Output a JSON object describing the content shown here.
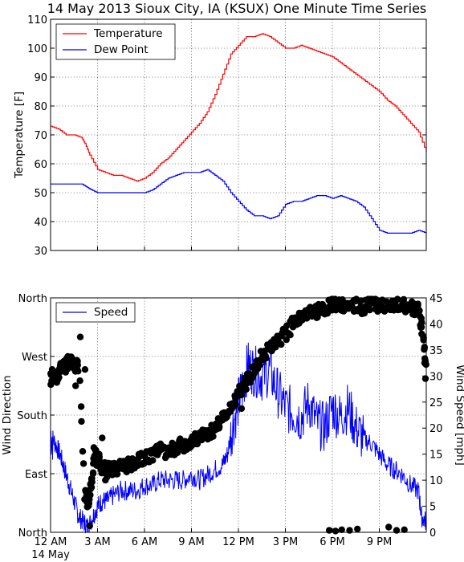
{
  "title": "14 May 2013 Sioux City, IA (KSUX) One Minute Time Series",
  "chart_data": [
    {
      "type": "line",
      "ylabel": "Temperature [F]",
      "ylim": [
        30,
        110
      ],
      "yticks": [
        30,
        40,
        50,
        60,
        70,
        80,
        90,
        100,
        110
      ],
      "xlim_hours": [
        0,
        24
      ],
      "grid": true,
      "legend_position": "top-left",
      "series": [
        {
          "name": "Temperature",
          "color": "#ff0000",
          "x_hours": [
            0,
            0.5,
            1,
            1.5,
            2,
            2.2,
            2.5,
            3,
            3.5,
            4,
            4.5,
            5,
            5.5,
            6,
            6.5,
            7,
            7.5,
            8,
            8.5,
            9,
            9.5,
            10,
            10.5,
            11,
            11.5,
            12,
            12.5,
            13,
            13.5,
            14,
            14.5,
            15,
            15.5,
            16,
            16.5,
            17,
            17.5,
            18,
            18.5,
            19,
            19.5,
            20,
            20.5,
            21,
            21.5,
            22,
            22.5,
            23,
            23.5,
            24
          ],
          "y": [
            73,
            72,
            70,
            70,
            69,
            67,
            63,
            58,
            57,
            56,
            56,
            55,
            54,
            55,
            57,
            60,
            62,
            65,
            68,
            71,
            74,
            78,
            84,
            91,
            98,
            101,
            104,
            104,
            105,
            104,
            102,
            100,
            100,
            101,
            100,
            99,
            98,
            97,
            95,
            93,
            91,
            89,
            87,
            85,
            82,
            80,
            77,
            74,
            71,
            64
          ]
        },
        {
          "name": "Dew Point",
          "color": "#0000ff",
          "x_hours": [
            0,
            1,
            2,
            2.3,
            2.6,
            3,
            4,
            5,
            6,
            6.5,
            7,
            7.5,
            8,
            8.5,
            9,
            9.5,
            10,
            10.5,
            11,
            11.5,
            12,
            12.5,
            13,
            13.5,
            14,
            14.5,
            15,
            15.5,
            16,
            16.5,
            17,
            17.5,
            18,
            18.5,
            19,
            19.5,
            20,
            20.5,
            21,
            21.5,
            22,
            22.5,
            23,
            23.5,
            24
          ],
          "y": [
            53,
            53,
            53,
            52,
            51,
            50,
            50,
            50,
            50,
            51,
            53,
            55,
            56,
            57,
            57,
            57,
            58,
            56,
            54,
            50,
            47,
            44,
            42,
            42,
            41,
            42,
            46,
            47,
            47,
            48,
            49,
            49,
            48,
            49,
            48,
            47,
            45,
            41,
            37,
            36,
            36,
            36,
            36,
            37,
            36
          ]
        }
      ]
    },
    {
      "type": "scatter",
      "ylabel": "Wind Direction",
      "y2label": "Wind Speed [mph]",
      "ylim": [
        0,
        360
      ],
      "ytick_labels": [
        "North",
        "East",
        "South",
        "West",
        "North"
      ],
      "ytick_values": [
        0,
        90,
        180,
        270,
        360
      ],
      "y2lim": [
        0,
        45
      ],
      "y2ticks": [
        0,
        5,
        10,
        15,
        20,
        25,
        30,
        35,
        40,
        45
      ],
      "xlim_hours": [
        0,
        24
      ],
      "xtick_labels": [
        "12 AM\n14 May",
        "3 AM",
        "6 AM",
        "9 AM",
        "12 PM",
        "3 PM",
        "6 PM",
        "9 PM"
      ],
      "xtick_values": [
        0,
        3,
        6,
        9,
        12,
        15,
        18,
        21
      ],
      "grid": true,
      "legend_position": "top-left",
      "series": [
        {
          "name": "Speed",
          "color": "#0000ff",
          "x_hours": [
            0,
            0.3,
            0.6,
            0.9,
            1.2,
            1.5,
            1.8,
            2.1,
            2.4,
            2.7,
            3,
            3.3,
            3.6,
            4,
            4.5,
            5,
            5.5,
            6,
            6.5,
            7,
            7.5,
            8,
            8.5,
            9,
            9.5,
            10,
            10.5,
            11,
            11.3,
            11.6,
            12,
            12.3,
            12.6,
            13,
            13.5,
            14,
            14.5,
            15,
            15.5,
            16,
            16.5,
            17,
            17.5,
            18,
            18.5,
            19,
            19.5,
            20,
            20.5,
            21,
            21.5,
            22,
            22.5,
            23,
            23.5,
            23.7,
            24
          ],
          "y": [
            19,
            17,
            15,
            12,
            9,
            6,
            3,
            2,
            1,
            3,
            5,
            6,
            6,
            7,
            8,
            8,
            8,
            9,
            9,
            10,
            10,
            10,
            10,
            11,
            10,
            11,
            12,
            13,
            15,
            20,
            25,
            28,
            32,
            31,
            30,
            31,
            27,
            24,
            23,
            22,
            25,
            21,
            20,
            24,
            22,
            24,
            20,
            18,
            17,
            15,
            13,
            12,
            11,
            9,
            8,
            3,
            2
          ]
        },
        {
          "name": "Wind Direction",
          "color": "#000000",
          "x_hours": [
            0,
            0.3,
            0.6,
            0.9,
            1.2,
            1.5,
            1.8,
            2,
            2.2,
            2.4,
            2.6,
            2.8,
            3,
            3.3,
            3.6,
            4,
            4.5,
            5,
            5.5,
            6,
            6.5,
            7,
            7.5,
            8,
            8.5,
            9,
            9.5,
            10,
            10.5,
            11,
            11.5,
            12,
            12.5,
            13,
            13.5,
            14,
            14.5,
            15,
            15.5,
            16,
            16.5,
            17,
            17.5,
            18,
            18.5,
            19,
            19.5,
            20,
            20.5,
            21,
            21.5,
            22,
            22.5,
            23,
            23.5,
            23.8,
            24
          ],
          "y": [
            235,
            240,
            250,
            255,
            265,
            260,
            250,
            170,
            60,
            40,
            80,
            120,
            110,
            100,
            95,
            100,
            100,
            105,
            110,
            115,
            120,
            125,
            125,
            130,
            135,
            140,
            145,
            150,
            160,
            175,
            190,
            215,
            230,
            250,
            270,
            280,
            295,
            305,
            320,
            330,
            335,
            340,
            345,
            350,
            350,
            350,
            350,
            345,
            350,
            350,
            350,
            350,
            348,
            345,
            340,
            300,
            240
          ]
        },
        {
          "name": "Wind Direction Outliers",
          "color": "#000000",
          "x_hours": [
            0.1,
            0.4,
            1.1,
            1.6,
            1.9,
            2.2,
            2.5,
            2.8,
            3.1,
            3.3,
            3.5,
            11.8,
            12.2,
            17.8,
            18.2,
            18.6,
            19.1,
            19.6,
            21.6,
            22.1,
            22.6,
            23.7,
            23.9
          ],
          "y": [
            250,
            230,
            270,
            225,
            300,
            250,
            10,
            330,
            120,
            145,
            80,
            210,
            190,
            3,
            2,
            4,
            3,
            5,
            8,
            3,
            4,
            315,
            260
          ]
        }
      ]
    }
  ]
}
